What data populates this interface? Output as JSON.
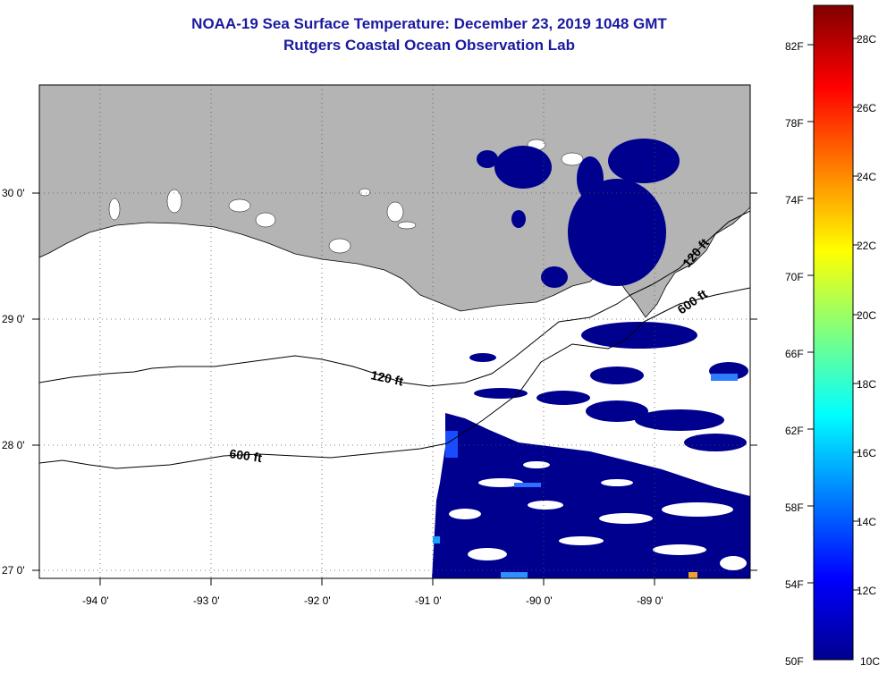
{
  "header": {
    "title": "NOAA-19 Sea Surface Temperature:  December 23, 2019 1048 GMT",
    "subtitle": "Rutgers Coastal Ocean Observation Lab"
  },
  "map": {
    "lat_labels": [
      "30 0'",
      "29 0'",
      "28 0'",
      "27 0'"
    ],
    "lon_labels": [
      "-94 0'",
      "-93 0'",
      "-92 0'",
      "-91 0'",
      "-90 0'",
      "-89 0'"
    ],
    "contours": [
      "120 ft",
      "600 ft",
      "120 ft",
      "600 ft"
    ],
    "land_color": "#b4b4b4",
    "sst_color": "#00008f"
  },
  "colorbar": {
    "f_labels": [
      "82F",
      "78F",
      "74F",
      "70F",
      "66F",
      "62F",
      "58F",
      "54F",
      "50F"
    ],
    "c_labels": [
      "28C",
      "26C",
      "24C",
      "22C",
      "20C",
      "18C",
      "16C",
      "14C",
      "12C",
      "10C"
    ]
  }
}
